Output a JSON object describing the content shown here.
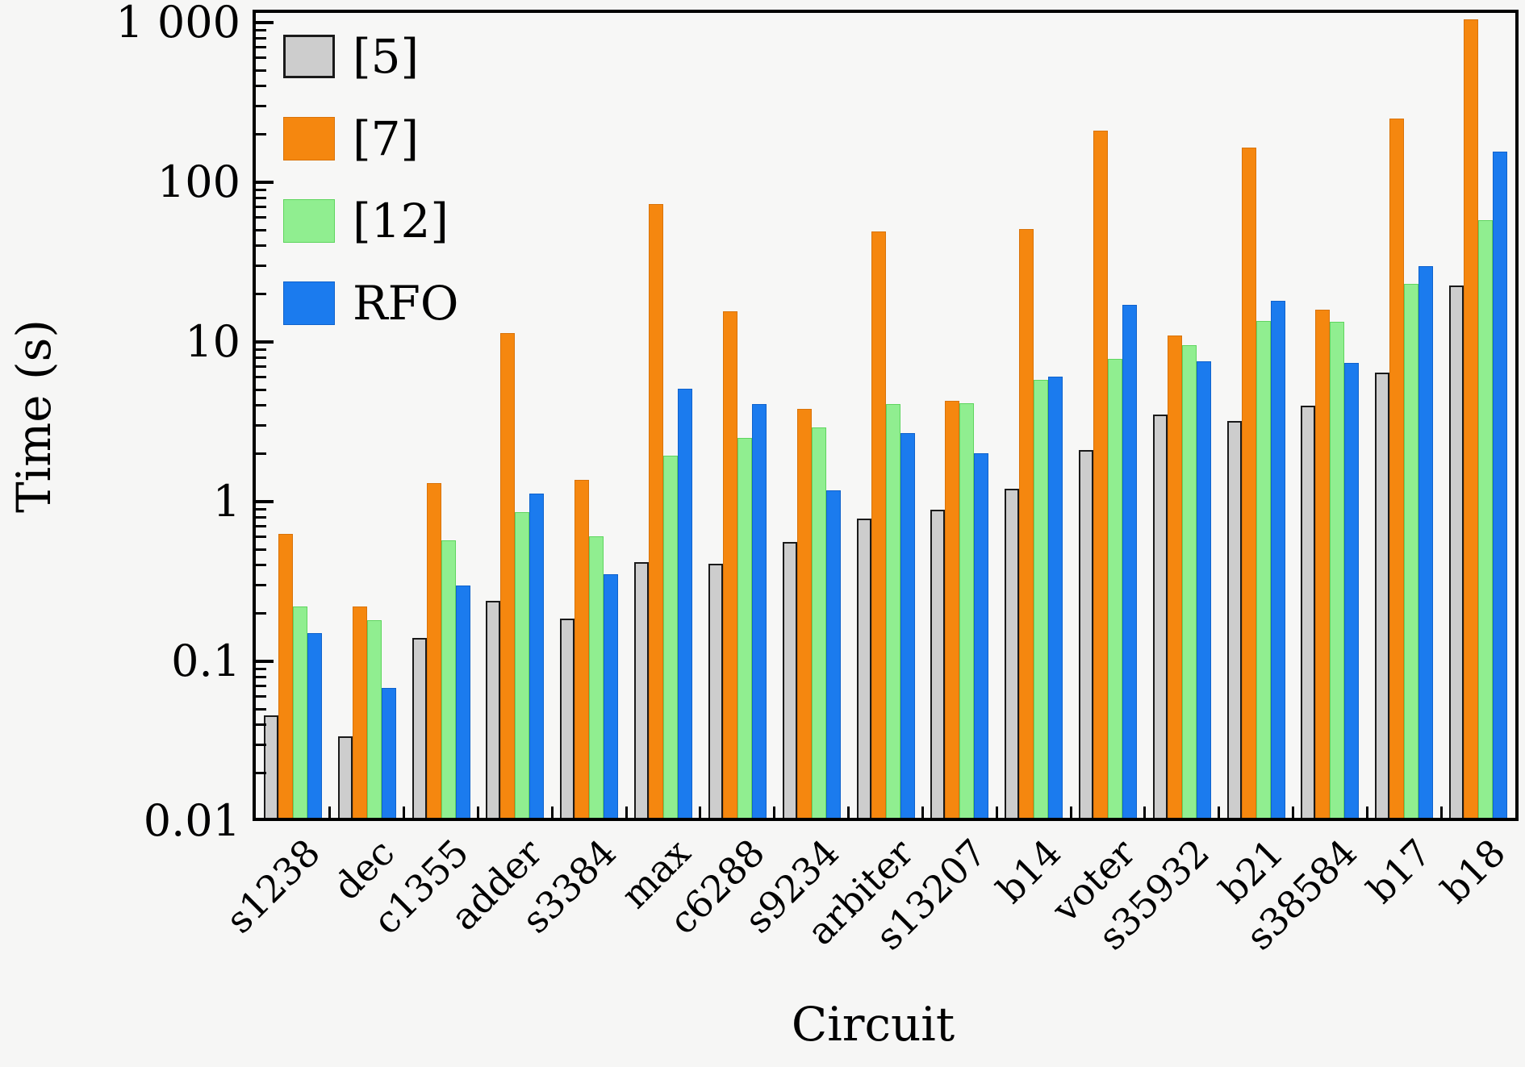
{
  "figure": {
    "ylabel": "Time (s)",
    "xlabel": "Circuit",
    "background": "#f6f6f5",
    "plot_background": "#f7f7f6"
  },
  "legend": {
    "position": "top-left",
    "entries": [
      {
        "label": "[5]",
        "color": "#cdcdcd",
        "border": "#1a1a1a"
      },
      {
        "label": "[7]",
        "color": "#f5870f",
        "border": "#d9730a"
      },
      {
        "label": "[12]",
        "color": "#90ee90",
        "border": "#5fd55f"
      },
      {
        "label": "RFO",
        "color": "#1b7bee",
        "border": "#0f62cc"
      }
    ]
  },
  "chart_data": {
    "type": "bar",
    "yscale": "log",
    "grid": false,
    "title": "",
    "xlabel": "Circuit",
    "ylabel": "Time (s)",
    "ylim": [
      0.01,
      1200
    ],
    "ytick_values": [
      0.01,
      0.1,
      1,
      10,
      100,
      1000
    ],
    "ytick_labels": [
      "0.01",
      "0.1",
      "1",
      "10",
      "100",
      "1 000"
    ],
    "categories": [
      "s1238",
      "dec",
      "c1355",
      "adder",
      "s3384",
      "max",
      "c6288",
      "s9234",
      "arbiter",
      "s13207",
      "b14",
      "voter",
      "s35932",
      "b21",
      "s38584",
      "b17",
      "b18"
    ],
    "series": [
      {
        "name": "[5]",
        "color": "#cdcdcd",
        "border": "#1a1a1a",
        "values": [
          0.046,
          0.034,
          0.14,
          0.24,
          0.185,
          0.42,
          0.41,
          0.56,
          0.78,
          0.89,
          1.2,
          2.1,
          3.5,
          3.2,
          4.0,
          6.4,
          22.5
        ]
      },
      {
        "name": "[7]",
        "color": "#f5870f",
        "border": "#d9730a",
        "values": [
          0.63,
          0.22,
          1.3,
          11.4,
          1.37,
          73,
          15.5,
          3.8,
          49,
          4.3,
          51,
          210,
          11,
          165,
          16,
          250,
          1050
        ]
      },
      {
        "name": "[12]",
        "color": "#90ee90",
        "border": "#5fd55f",
        "values": [
          0.22,
          0.18,
          0.57,
          0.86,
          0.61,
          1.95,
          2.5,
          2.9,
          4.1,
          4.15,
          5.8,
          7.8,
          9.6,
          13.5,
          13.3,
          23,
          58
        ]
      },
      {
        "name": "RFO",
        "color": "#1b7bee",
        "border": "#0f62cc",
        "values": [
          0.15,
          0.068,
          0.3,
          1.12,
          0.35,
          5.1,
          4.1,
          1.18,
          2.7,
          2.0,
          6.1,
          17,
          7.6,
          18,
          7.4,
          30,
          155
        ]
      }
    ]
  }
}
